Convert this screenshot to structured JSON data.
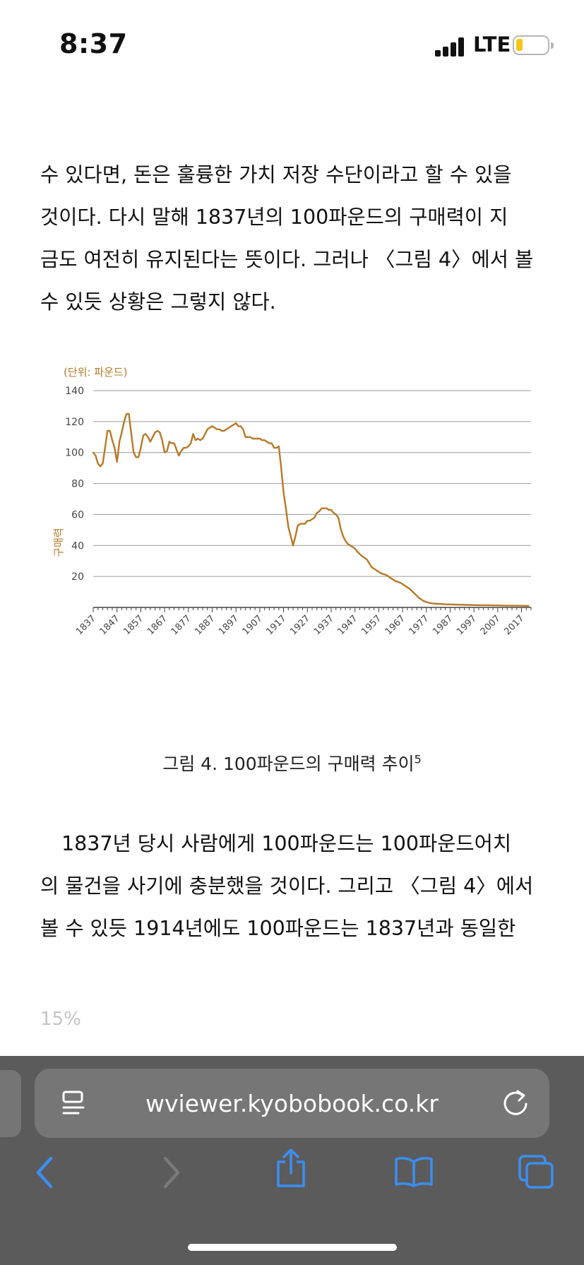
{
  "status_bar": {
    "time": "8:37",
    "network": "LTE"
  },
  "reader": {
    "paragraph1_lines": [
      "수 있다면, 돈은 훌륭한 가치 저장 수단이라고 할 수 있을",
      "것이다. 다시 말해 1837년의 100파운드의 구매력이 지",
      "금도 여전히 유지된다는 뜻이다. 그러나 〈그림 4〉에서 볼",
      "수 있듯 상황은 그렇지 않다."
    ],
    "paragraph2_lines": [
      "1837년 당시 사람에게 100파운드는 100파운드어치",
      "의 물건을 사기에 충분했을 것이다. 그리고 〈그림 4〉에서",
      "볼 수 있듯 1914년에도 100파운드는 1837년과 동일한"
    ],
    "progress": "15%",
    "caption": "그림 4. 100파운드의 구매력 추이",
    "caption_footnote": "5"
  },
  "chart_data": {
    "type": "line",
    "unit_label": "(단위: 파운드)",
    "ylabel": "구매력",
    "xlabel": "",
    "ylim": [
      0,
      140
    ],
    "yticks": [
      20,
      40,
      60,
      80,
      100,
      120,
      140
    ],
    "xticks": [
      "1837",
      "1847",
      "1857",
      "1867",
      "1877",
      "1887",
      "1897",
      "1907",
      "1917",
      "1927",
      "1937",
      "1947",
      "1957",
      "1967",
      "1977",
      "1987",
      "1997",
      "2007",
      "2017"
    ],
    "xlim": [
      1837,
      2021
    ],
    "line_color": "#b5792a",
    "series": [
      {
        "name": "100파운드의 구매력",
        "x": [
          1837,
          1838,
          1839,
          1840,
          1841,
          1842,
          1843,
          1844,
          1845,
          1846,
          1847,
          1848,
          1849,
          1850,
          1851,
          1852,
          1853,
          1854,
          1855,
          1856,
          1857,
          1858,
          1859,
          1860,
          1861,
          1862,
          1863,
          1864,
          1865,
          1866,
          1867,
          1868,
          1869,
          1870,
          1871,
          1872,
          1873,
          1874,
          1875,
          1876,
          1877,
          1878,
          1879,
          1880,
          1881,
          1882,
          1883,
          1884,
          1885,
          1886,
          1887,
          1888,
          1889,
          1890,
          1891,
          1892,
          1893,
          1894,
          1895,
          1896,
          1897,
          1898,
          1899,
          1900,
          1901,
          1902,
          1903,
          1904,
          1905,
          1906,
          1907,
          1908,
          1909,
          1910,
          1911,
          1912,
          1913,
          1914,
          1915,
          1916,
          1917,
          1918,
          1919,
          1920,
          1921,
          1922,
          1923,
          1924,
          1925,
          1926,
          1927,
          1928,
          1929,
          1930,
          1931,
          1932,
          1933,
          1934,
          1935,
          1936,
          1937,
          1938,
          1939,
          1940,
          1941,
          1942,
          1943,
          1944,
          1945,
          1946,
          1947,
          1948,
          1950,
          1952,
          1954,
          1956,
          1958,
          1960,
          1962,
          1964,
          1966,
          1968,
          1970,
          1972,
          1974,
          1976,
          1978,
          1980,
          1985,
          1990,
          1995,
          2000,
          2005,
          2010,
          2015,
          2020
        ],
        "values": [
          100,
          98,
          93,
          91,
          93,
          103,
          114,
          114,
          108,
          103,
          94,
          107,
          113,
          120,
          125,
          125,
          112,
          100,
          97,
          97,
          103,
          111,
          112,
          110,
          107,
          110,
          113,
          114,
          113,
          108,
          100,
          101,
          107,
          106,
          106,
          102,
          98,
          101,
          103,
          103,
          104,
          106,
          112,
          108,
          109,
          108,
          109,
          112,
          115,
          116,
          117,
          116,
          115,
          115,
          114,
          114,
          115,
          116,
          117,
          118,
          119,
          117,
          117,
          115,
          110,
          110,
          110,
          109,
          109,
          109,
          109,
          108,
          108,
          107,
          106,
          106,
          103,
          103,
          104,
          90,
          74,
          64,
          52,
          46,
          40,
          46,
          53,
          54,
          54,
          54,
          56,
          56,
          57,
          58,
          61,
          62,
          64,
          64,
          64,
          63,
          63,
          61,
          60,
          58,
          51,
          46,
          43,
          41,
          40,
          39,
          38,
          36,
          33,
          31,
          26,
          24,
          22,
          21,
          19,
          17,
          16,
          14,
          12,
          9,
          6,
          4,
          3,
          2.5,
          2,
          1.8,
          1.6,
          1.4,
          1.3,
          1.2,
          1.1,
          1.0
        ]
      }
    ]
  }
}
